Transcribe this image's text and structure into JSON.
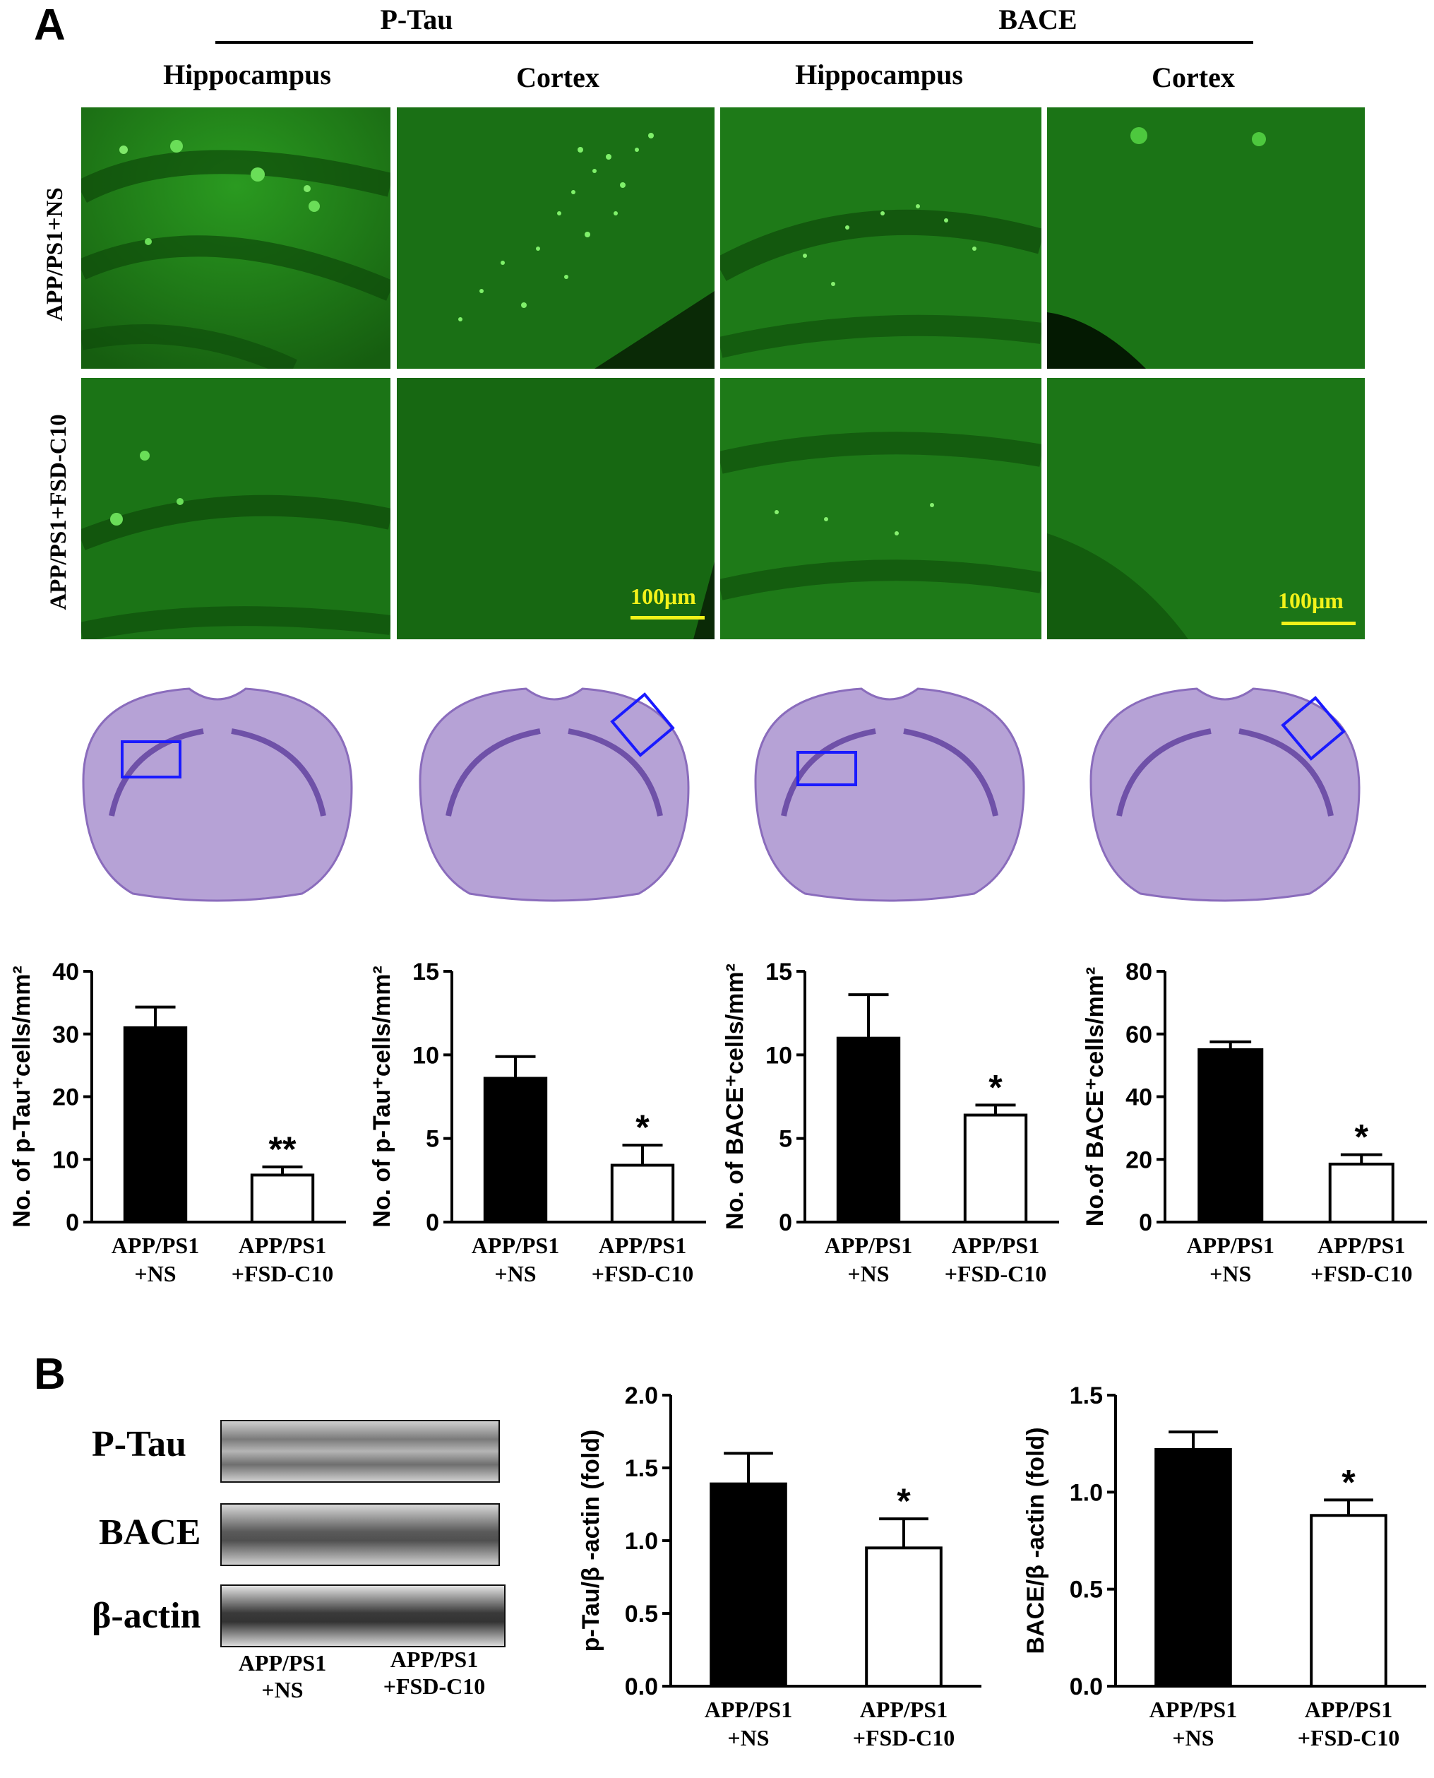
{
  "panel_a": {
    "letter": "A",
    "group_headers": [
      "P-Tau",
      "BACE"
    ],
    "column_headers": [
      "Hippocampus",
      "Cortex",
      "Hippocampus",
      "Cortex"
    ],
    "row_labels": [
      "APP/PS1+NS",
      "APP/PS1+FSD-C10"
    ],
    "scale_bar_label": "100μm"
  },
  "panel_b": {
    "letter": "B",
    "blot_labels": [
      "P-Tau",
      "BACE",
      "β-actin"
    ],
    "lane_labels": [
      [
        "APP/PS1",
        "+NS"
      ],
      [
        "APP/PS1",
        "+FSD-C10"
      ]
    ]
  },
  "colors": {
    "fluorescence": "#1f7a17",
    "highlight_box": "#1a1aff",
    "scale_bar": "#f2f21a",
    "bar_control": "#000000",
    "bar_treated": "#ffffff",
    "nissl": "#b6a2d6"
  },
  "chart_data": [
    {
      "type": "bar",
      "ylabel": "No. of p-Tau⁺cells/mm²",
      "ylim": [
        0,
        40
      ],
      "yticks": [
        "0",
        "10",
        "20",
        "30",
        "40"
      ],
      "categories": [
        [
          "APP/PS1",
          "+NS"
        ],
        [
          "APP/PS1",
          "+FSD-C10"
        ]
      ],
      "values": [
        31,
        7.5
      ],
      "errors": [
        3.3,
        1.3
      ],
      "significance": [
        "",
        "**"
      ]
    },
    {
      "type": "bar",
      "ylabel": "No. of p-Tau⁺cells/mm²",
      "ylim": [
        0,
        15
      ],
      "yticks": [
        "0",
        "5",
        "10",
        "15"
      ],
      "categories": [
        [
          "APP/PS1",
          "+NS"
        ],
        [
          "APP/PS1",
          "+FSD-C10"
        ]
      ],
      "values": [
        8.6,
        3.4
      ],
      "errors": [
        1.3,
        1.2
      ],
      "significance": [
        "",
        "*"
      ]
    },
    {
      "type": "bar",
      "ylabel": "No. of BACE⁺cells/mm²",
      "ylim": [
        0,
        15
      ],
      "yticks": [
        "0",
        "5",
        "10",
        "15"
      ],
      "categories": [
        [
          "APP/PS1",
          "+NS"
        ],
        [
          "APP/PS1",
          "+FSD-C10"
        ]
      ],
      "values": [
        11.0,
        6.4
      ],
      "errors": [
        2.6,
        0.6
      ],
      "significance": [
        "",
        "*"
      ]
    },
    {
      "type": "bar",
      "ylabel": "No.of BACE⁺cells/mm²",
      "ylim": [
        0,
        80
      ],
      "yticks": [
        "0",
        "20",
        "40",
        "60",
        "80"
      ],
      "categories": [
        [
          "APP/PS1",
          "+NS"
        ],
        [
          "APP/PS1",
          "+FSD-C10"
        ]
      ],
      "values": [
        55,
        18.5
      ],
      "errors": [
        2.5,
        3
      ],
      "significance": [
        "",
        "*"
      ]
    },
    {
      "type": "bar",
      "ylabel": "p-Tau/β -actin (fold)",
      "ylim": [
        0,
        2
      ],
      "yticks": [
        "0.0",
        "0.5",
        "1.0",
        "1.5",
        "2.0"
      ],
      "categories": [
        [
          "APP/PS1",
          "+NS"
        ],
        [
          "APP/PS1",
          "+FSD-C10"
        ]
      ],
      "values": [
        1.39,
        0.95
      ],
      "errors": [
        0.21,
        0.2
      ],
      "significance": [
        "",
        "*"
      ]
    },
    {
      "type": "bar",
      "ylabel": "BACE/β -actin (fold)",
      "ylim": [
        0,
        1.5
      ],
      "yticks": [
        "0.0",
        "0.5",
        "1.0",
        "1.5"
      ],
      "categories": [
        [
          "APP/PS1",
          "+NS"
        ],
        [
          "APP/PS1",
          "+FSD-C10"
        ]
      ],
      "values": [
        1.22,
        0.88
      ],
      "errors": [
        0.09,
        0.08
      ],
      "significance": [
        "",
        "*"
      ]
    }
  ]
}
